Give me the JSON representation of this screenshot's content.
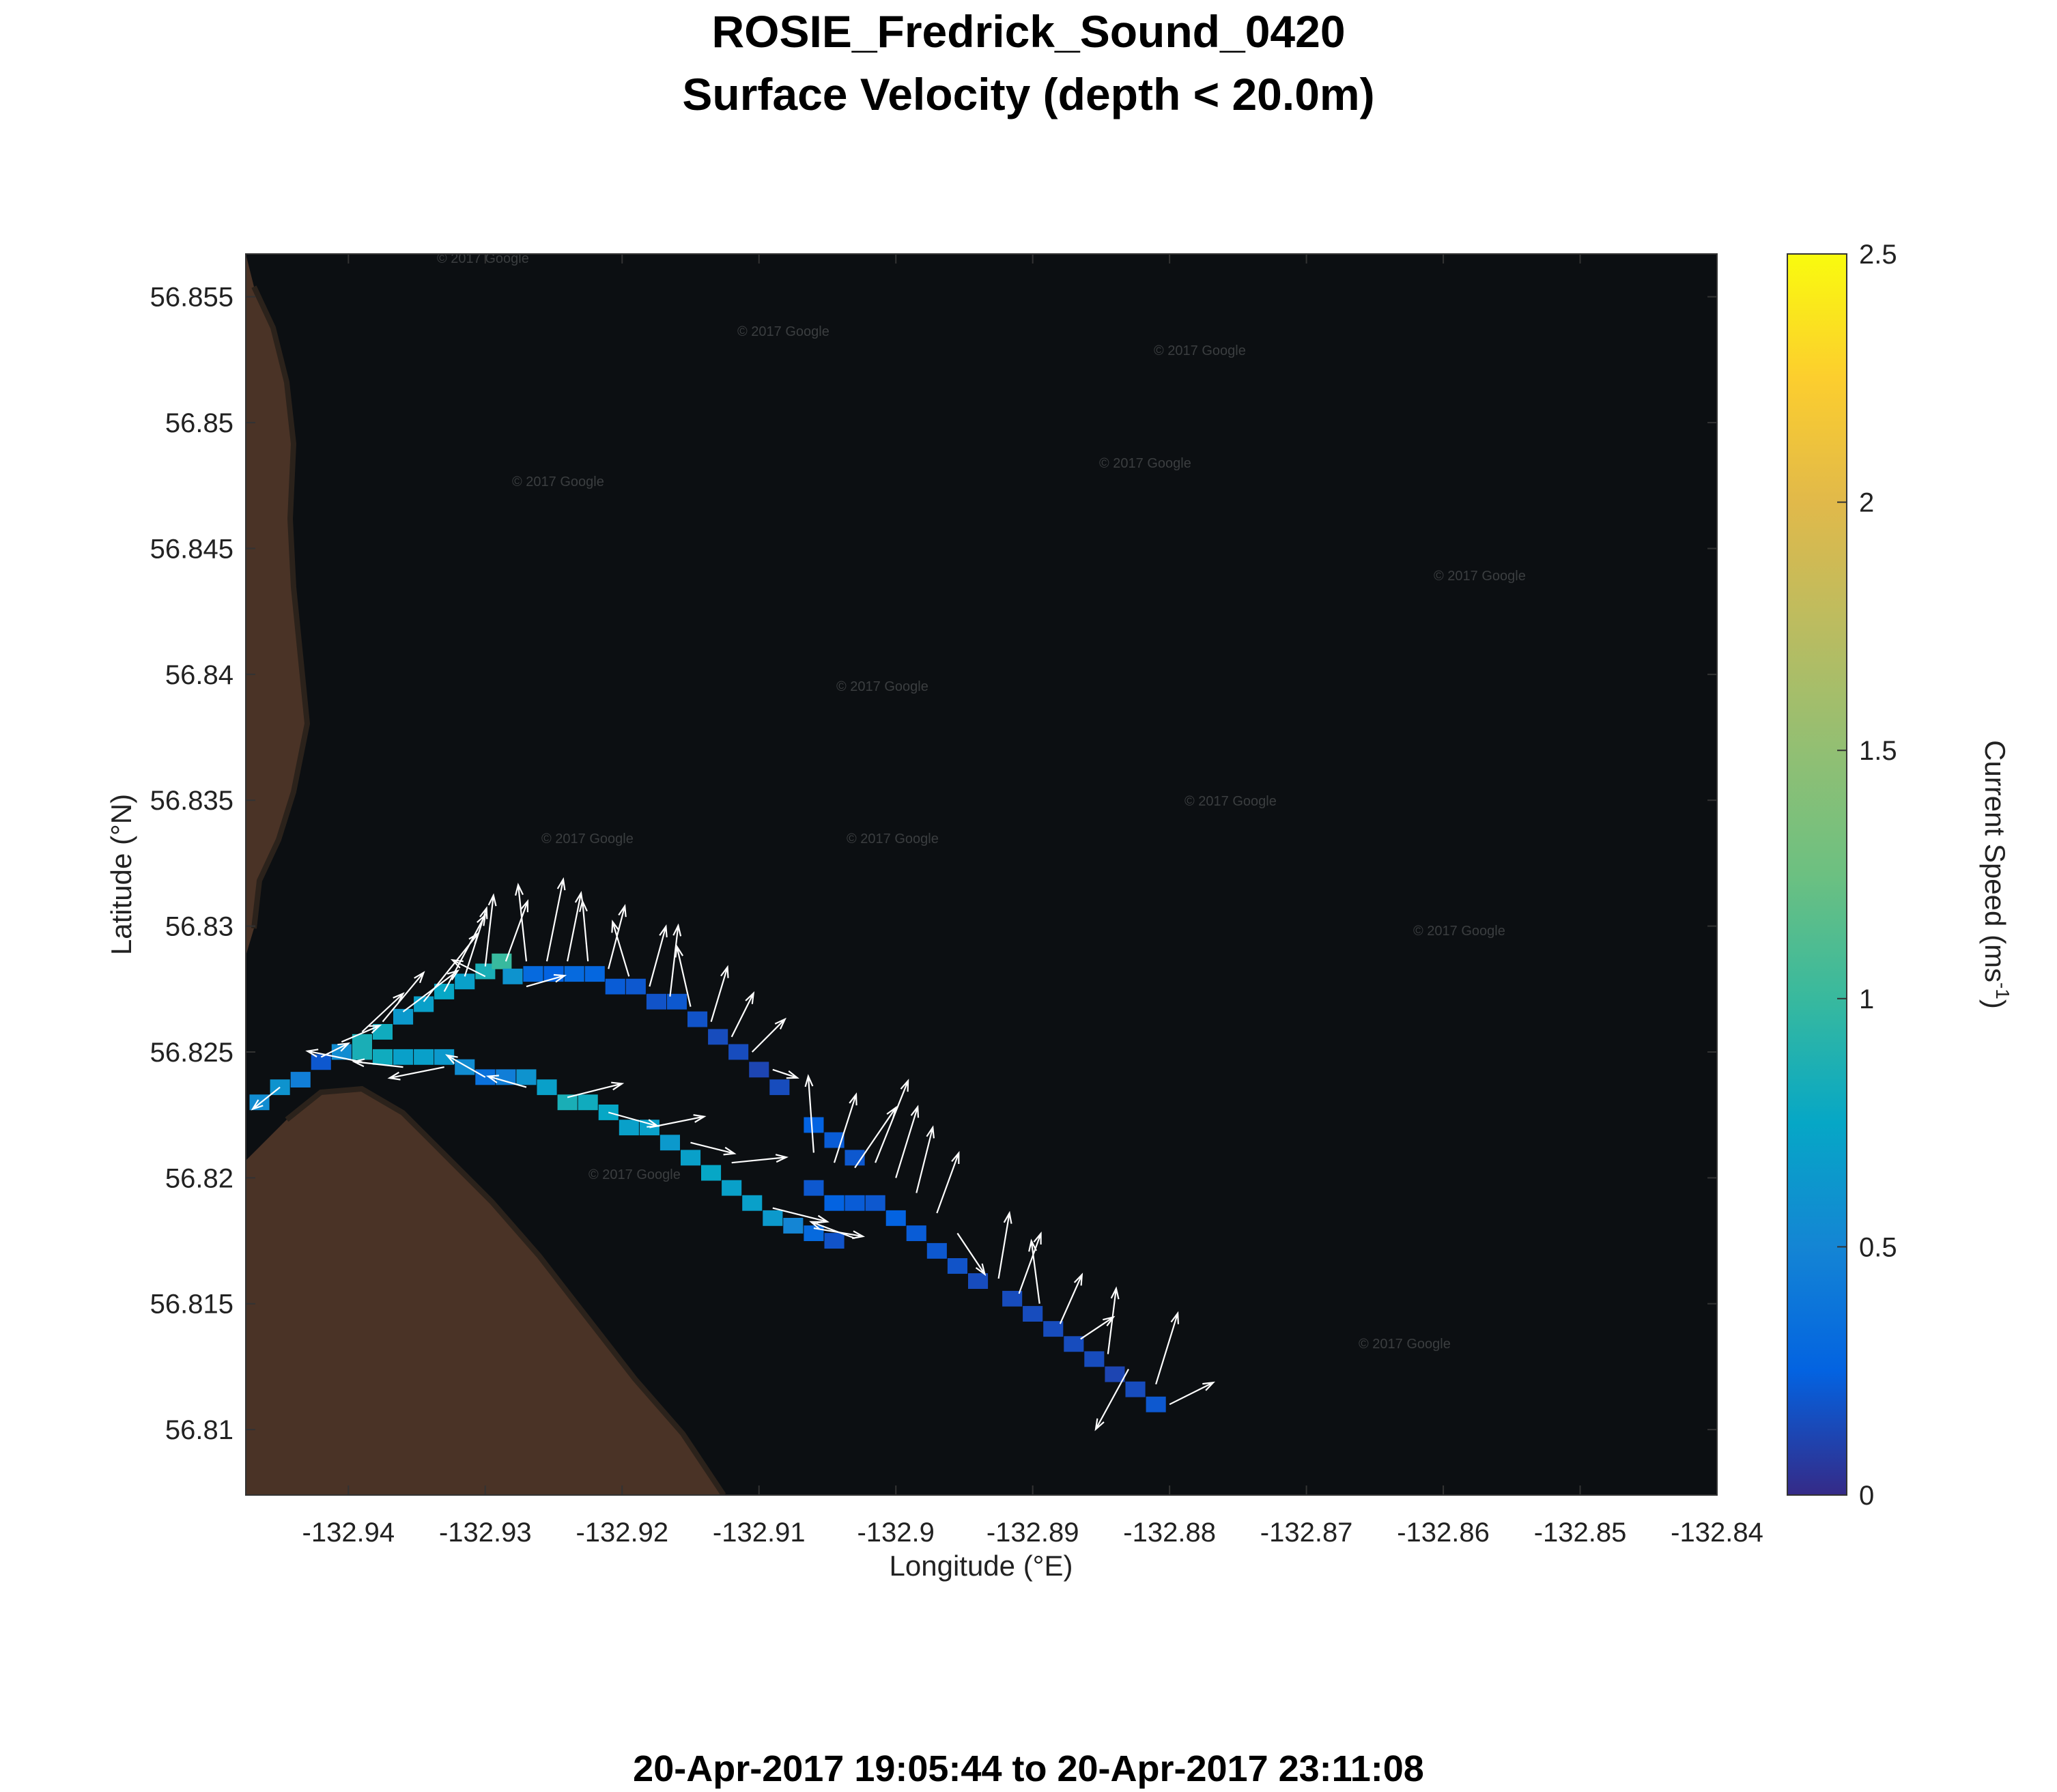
{
  "title": "ROSIE_Fredrick_Sound_0420",
  "subtitle": "Surface Velocity (depth < 20.0m)",
  "footer": "20-Apr-2017 19:05:44 to 20-Apr-2017 23:11:08",
  "watermark": "© 2017 Google",
  "colors": {
    "background": "#ffffff",
    "water": "#0c0f12",
    "land": "#4a3326",
    "arrow": "#ffffff"
  },
  "chart_data": {
    "type": "heatmap",
    "xlabel": "Longitude (°E)",
    "ylabel": "Latitude (°N)",
    "xlim": [
      -132.9475,
      -132.84
    ],
    "ylim": [
      56.8074,
      56.8567
    ],
    "xticks": [
      -132.94,
      -132.93,
      -132.92,
      -132.91,
      -132.9,
      -132.89,
      -132.88,
      -132.87,
      -132.86,
      -132.85,
      -132.84
    ],
    "yticks": [
      56.81,
      56.815,
      56.82,
      56.825,
      56.83,
      56.835,
      56.84,
      56.845,
      56.85,
      56.855
    ],
    "colorbar": {
      "label": "Current Speed (ms",
      "label_sup": "-1",
      "label_end": ")",
      "range": [
        0,
        2.5
      ],
      "ticks": [
        0,
        0.5,
        1,
        1.5,
        2,
        2.5
      ],
      "colormap": "parula"
    },
    "grid": false,
    "cell_size": {
      "dlon": 0.00145,
      "dlat": 0.00062
    },
    "cells": [
      [
        -132.9465,
        56.823,
        0.55
      ],
      [
        -132.945,
        56.8236,
        0.6
      ],
      [
        -132.9435,
        56.8239,
        0.45
      ],
      [
        -132.942,
        56.8246,
        0.2
      ],
      [
        -132.9405,
        56.825,
        0.55
      ],
      [
        -132.939,
        56.8254,
        0.85
      ],
      [
        -132.9375,
        56.8258,
        0.8
      ],
      [
        -132.936,
        56.8264,
        0.65
      ],
      [
        -132.9345,
        56.8269,
        0.7
      ],
      [
        -132.933,
        56.8274,
        0.75
      ],
      [
        -132.9315,
        56.8278,
        0.7
      ],
      [
        -132.93,
        56.8282,
        0.85
      ],
      [
        -132.9288,
        56.8286,
        1.0
      ],
      [
        -132.928,
        56.828,
        0.6
      ],
      [
        -132.9265,
        56.8281,
        0.3
      ],
      [
        -132.925,
        56.8281,
        0.25
      ],
      [
        -132.9235,
        56.8281,
        0.3
      ],
      [
        -132.922,
        56.8281,
        0.28
      ],
      [
        -132.9205,
        56.8276,
        0.22
      ],
      [
        -132.919,
        56.8276,
        0.2
      ],
      [
        -132.9175,
        56.827,
        0.18
      ],
      [
        -132.916,
        56.827,
        0.2
      ],
      [
        -132.9145,
        56.8263,
        0.18
      ],
      [
        -132.913,
        56.8256,
        0.15
      ],
      [
        -132.9115,
        56.825,
        0.15
      ],
      [
        -132.91,
        56.8243,
        0.12
      ],
      [
        -132.9085,
        56.8236,
        0.15
      ],
      [
        -132.939,
        56.825,
        0.85
      ],
      [
        -132.9375,
        56.8248,
        0.8
      ],
      [
        -132.936,
        56.8248,
        0.7
      ],
      [
        -132.9345,
        56.8248,
        0.7
      ],
      [
        -132.933,
        56.8248,
        0.65
      ],
      [
        -132.9315,
        56.8244,
        0.55
      ],
      [
        -132.93,
        56.824,
        0.35
      ],
      [
        -132.9285,
        56.824,
        0.45
      ],
      [
        -132.927,
        56.824,
        0.6
      ],
      [
        -132.9255,
        56.8236,
        0.7
      ],
      [
        -132.924,
        56.823,
        0.85
      ],
      [
        -132.9225,
        56.823,
        0.8
      ],
      [
        -132.921,
        56.8226,
        0.75
      ],
      [
        -132.9195,
        56.822,
        0.7
      ],
      [
        -132.918,
        56.822,
        0.7
      ],
      [
        -132.9165,
        56.8214,
        0.65
      ],
      [
        -132.915,
        56.8208,
        0.7
      ],
      [
        -132.9135,
        56.8202,
        0.75
      ],
      [
        -132.912,
        56.8196,
        0.7
      ],
      [
        -132.9105,
        56.819,
        0.7
      ],
      [
        -132.909,
        56.8184,
        0.65
      ],
      [
        -132.9075,
        56.8181,
        0.5
      ],
      [
        -132.906,
        56.8178,
        0.3
      ],
      [
        -132.9045,
        56.8175,
        0.18
      ],
      [
        -132.906,
        56.8221,
        0.25
      ],
      [
        -132.9045,
        56.8215,
        0.22
      ],
      [
        -132.903,
        56.8208,
        0.2
      ],
      [
        -132.906,
        56.8196,
        0.2
      ],
      [
        -132.9045,
        56.819,
        0.25
      ],
      [
        -132.903,
        56.819,
        0.22
      ],
      [
        -132.9015,
        56.819,
        0.2
      ],
      [
        -132.9,
        56.8184,
        0.25
      ],
      [
        -132.8985,
        56.8178,
        0.22
      ],
      [
        -132.897,
        56.8171,
        0.2
      ],
      [
        -132.8955,
        56.8165,
        0.18
      ],
      [
        -132.894,
        56.8159,
        0.15
      ],
      [
        -132.8915,
        56.8152,
        0.15
      ],
      [
        -132.89,
        56.8146,
        0.15
      ],
      [
        -132.8885,
        56.814,
        0.15
      ],
      [
        -132.887,
        56.8134,
        0.15
      ],
      [
        -132.8855,
        56.8128,
        0.15
      ],
      [
        -132.884,
        56.8122,
        0.12
      ],
      [
        -132.8825,
        56.8116,
        0.15
      ],
      [
        -132.881,
        56.811,
        0.2
      ]
    ],
    "vectors": [
      [
        -132.945,
        56.8236,
        -1,
        -0.8
      ],
      [
        -132.942,
        56.8248,
        1,
        0.5
      ],
      [
        -132.9405,
        56.8254,
        1.4,
        0.6
      ],
      [
        -132.939,
        56.8258,
        1.5,
        1.4
      ],
      [
        -132.9375,
        56.8262,
        1.5,
        1.8
      ],
      [
        -132.936,
        56.8266,
        2,
        1.5
      ],
      [
        -132.9345,
        56.827,
        2,
        2.5
      ],
      [
        -132.933,
        56.8274,
        1.5,
        2.8
      ],
      [
        -132.9315,
        56.828,
        0.8,
        2.5
      ],
      [
        -132.93,
        56.8284,
        0.3,
        2.6
      ],
      [
        -132.9285,
        56.8286,
        0.8,
        2.2
      ],
      [
        -132.927,
        56.8286,
        -0.3,
        2.8
      ],
      [
        -132.9255,
        56.8286,
        0.6,
        3.0
      ],
      [
        -132.924,
        56.8286,
        0.5,
        2.5
      ],
      [
        -132.9225,
        56.8286,
        -0.2,
        2.2
      ],
      [
        -132.921,
        56.8283,
        0.6,
        2.3
      ],
      [
        -132.9195,
        56.828,
        -0.6,
        2.0
      ],
      [
        -132.918,
        56.8276,
        0.6,
        2.2
      ],
      [
        -132.9165,
        56.8272,
        0.3,
        2.6
      ],
      [
        -132.915,
        56.8268,
        -0.5,
        2.2
      ],
      [
        -132.9135,
        56.8262,
        0.6,
        2.0
      ],
      [
        -132.912,
        56.8256,
        0.8,
        1.6
      ],
      [
        -132.9105,
        56.825,
        1.2,
        1.2
      ],
      [
        -132.909,
        56.8243,
        0.9,
        -0.3
      ],
      [
        -132.93,
        56.828,
        -1.2,
        0.6
      ],
      [
        -132.927,
        56.8276,
        1.4,
        0.4
      ],
      [
        -132.939,
        56.8246,
        -2,
        0.4
      ],
      [
        -132.936,
        56.8244,
        -1.8,
        0.2
      ],
      [
        -132.933,
        56.8244,
        -2,
        -0.4
      ],
      [
        -132.93,
        56.824,
        -1.4,
        0.8
      ],
      [
        -132.927,
        56.8236,
        -1.4,
        0.4
      ],
      [
        -132.924,
        56.8232,
        2,
        0.5
      ],
      [
        -132.921,
        56.8226,
        1.8,
        -0.5
      ],
      [
        -132.918,
        56.822,
        2,
        0.4
      ],
      [
        -132.915,
        56.8214,
        1.6,
        -0.4
      ],
      [
        -132.912,
        56.8206,
        2,
        0.2
      ],
      [
        -132.909,
        56.8188,
        2,
        -0.5
      ],
      [
        -132.906,
        56.818,
        1.8,
        -0.3
      ],
      [
        -132.903,
        56.8176,
        -1.6,
        0.6
      ],
      [
        -132.906,
        56.821,
        -0.2,
        2.8
      ],
      [
        -132.9045,
        56.8206,
        0.8,
        2.5
      ],
      [
        -132.903,
        56.8204,
        1.5,
        2.2
      ],
      [
        -132.9015,
        56.8206,
        1.2,
        3.0
      ],
      [
        -132.9,
        56.82,
        0.8,
        2.6
      ],
      [
        -132.8985,
        56.8194,
        0.6,
        2.4
      ],
      [
        -132.897,
        56.8186,
        0.8,
        2.2
      ],
      [
        -132.8955,
        56.8178,
        1.0,
        -1.5
      ],
      [
        -132.8925,
        56.816,
        0.4,
        2.4
      ],
      [
        -132.891,
        56.8154,
        0.8,
        2.2
      ],
      [
        -132.8895,
        56.815,
        -0.3,
        2.3
      ],
      [
        -132.888,
        56.8142,
        0.8,
        1.8
      ],
      [
        -132.8865,
        56.8136,
        1.2,
        0.8
      ],
      [
        -132.8845,
        56.813,
        0.3,
        2.4
      ],
      [
        -132.883,
        56.8124,
        -1.2,
        -2.2
      ],
      [
        -132.881,
        56.8118,
        0.8,
        2.6
      ],
      [
        -132.88,
        56.811,
        1.6,
        0.8
      ]
    ]
  }
}
